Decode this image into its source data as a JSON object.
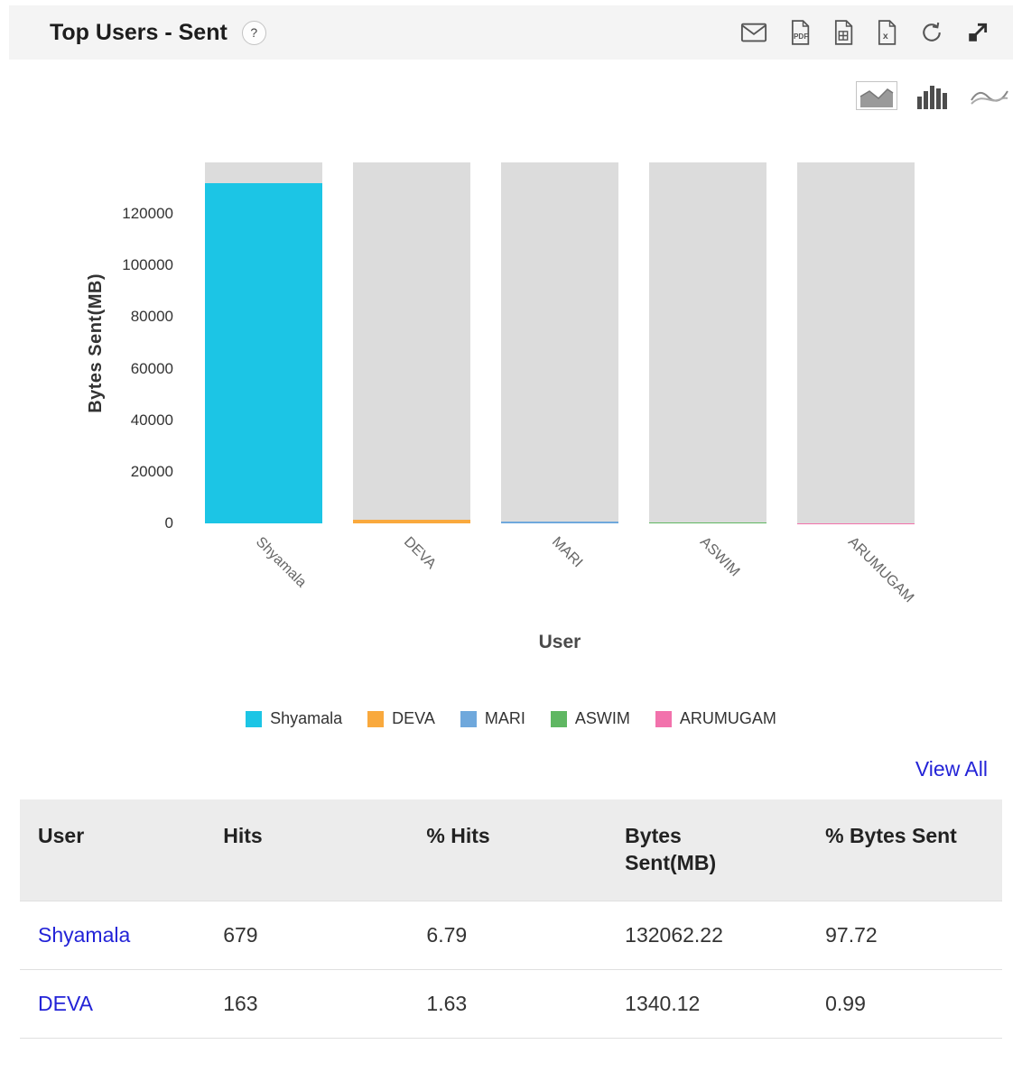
{
  "header": {
    "title": "Top Users - Sent",
    "help": "?"
  },
  "chart_data": {
    "type": "bar",
    "categories": [
      "Shyamala",
      "DEVA",
      "MARI",
      "ASWIM",
      "ARUMUGAM"
    ],
    "values": [
      132062.22,
      1340.12,
      700,
      450,
      150
    ],
    "series_colors": [
      "#1cc5e5",
      "#f9a93d",
      "#6fa8dc",
      "#5fb762",
      "#f272ac"
    ],
    "track_color": "#dcdcdc",
    "xlabel": "User",
    "ylabel": "Bytes Sent(MB)",
    "ylim": [
      0,
      140000
    ],
    "yticks": [
      0,
      20000,
      40000,
      60000,
      80000,
      100000,
      120000
    ],
    "legend": [
      "Shyamala",
      "DEVA",
      "MARI",
      "ASWIM",
      "ARUMUGAM"
    ],
    "legend_position": "bottom",
    "grid": false
  },
  "view_all_label": "View All",
  "table": {
    "columns": [
      "User",
      "Hits",
      "% Hits",
      "Bytes Sent(MB)",
      "% Bytes Sent"
    ],
    "rows": [
      [
        "Shyamala",
        "679",
        "6.79",
        "132062.22",
        "97.72"
      ],
      [
        "DEVA",
        "163",
        "1.63",
        "1340.12",
        "0.99"
      ]
    ]
  },
  "colors": {
    "link": "#2323d7",
    "header_bg": "#f4f4f4",
    "table_header_bg": "#ececec"
  }
}
